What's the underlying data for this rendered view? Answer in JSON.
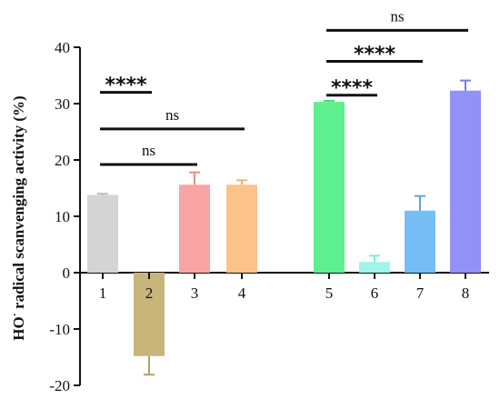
{
  "chart_data": {
    "type": "bar",
    "ylabel_main": "HO",
    "ylabel_sup": "·",
    "ylabel_rest": " radical scanvenging activity (%)",
    "ylim": [
      -20,
      40
    ],
    "yticks": [
      "-20",
      "-10",
      "0",
      "10",
      "20",
      "30",
      "40"
    ],
    "categories": [
      "1",
      "2",
      "3",
      "4",
      "5",
      "6",
      "7",
      "8"
    ],
    "values": [
      13.8,
      -14.8,
      15.6,
      15.6,
      30.3,
      1.9,
      11.0,
      32.3
    ],
    "errors": [
      0.2,
      3.3,
      2.2,
      0.8,
      0.2,
      1.1,
      2.6,
      1.8
    ],
    "colors": [
      "#d4d4d4",
      "#c8b57a",
      "#f9a3a3",
      "#fcc28a",
      "#5ef08e",
      "#9ef5e8",
      "#74bef5",
      "#9191f7"
    ],
    "error_colors": [
      "#bdbdbd",
      "#b3a066",
      "#f28a8a",
      "#f5ac6f",
      "#48d87a",
      "#7eeadc",
      "#5aa6e3",
      "#7a7af0"
    ],
    "grid": false,
    "legend": "none",
    "comparisons": [
      {
        "from": "1",
        "to": "2",
        "label": "****",
        "y": 32
      },
      {
        "from": "1",
        "to": "4",
        "label": "ns",
        "y": 25.5
      },
      {
        "from": "1",
        "to": "3",
        "label": "ns",
        "y": 19.2
      },
      {
        "from": "5",
        "to": "8",
        "label": "ns",
        "y": 43
      },
      {
        "from": "5",
        "to": "7",
        "label": "****",
        "y": 37.5
      },
      {
        "from": "5",
        "to": "6",
        "label": "****",
        "y": 31.5
      }
    ]
  }
}
